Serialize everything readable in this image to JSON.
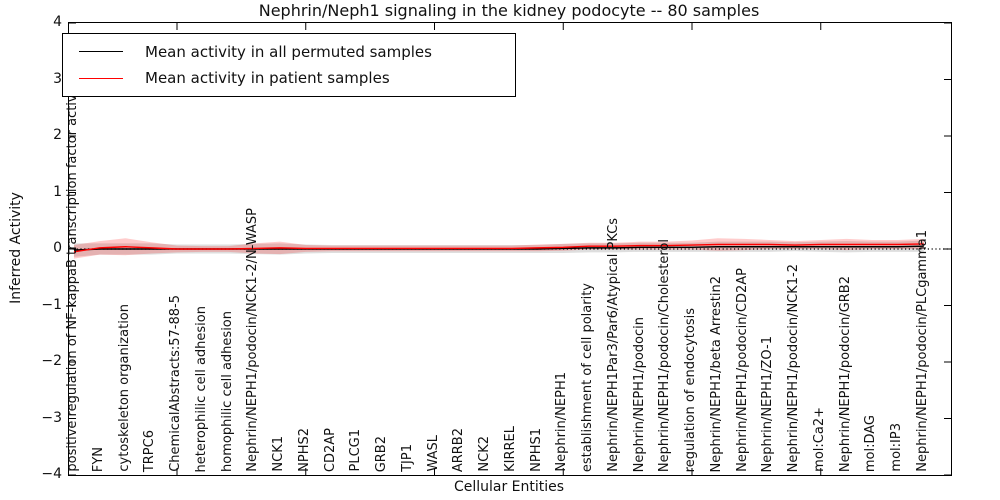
{
  "chart_data": {
    "type": "line",
    "title": "Nephrin/Neph1 signaling in the kidney podocyte -- 80 samples",
    "xlabel": "Cellular Entities",
    "ylabel": "Inferred Activity",
    "ylim": [
      -4,
      4
    ],
    "yticks": [
      4,
      3,
      2,
      1,
      0,
      -1,
      -2,
      -3,
      -4
    ],
    "xtick_positions": [
      4,
      9,
      14,
      19,
      24,
      29
    ],
    "grid": false,
    "legend_position": "upper-left",
    "zero_line": {
      "value": 0,
      "style": "dotted",
      "color": "#000000"
    },
    "categories": [
      "positive regulation of NF-kappaB transcription factor activity",
      "FYN",
      "cytoskeleton organization",
      "TRPC6",
      "ChemicalAbstracts:57-88-5",
      "heterophilic cell adhesion",
      "homophilic cell adhesion",
      "Nephrin/NEPH1/podocin/NCK1-2/N-WASP",
      "NCK1",
      "NPHS2",
      "CD2AP",
      "PLCG1",
      "GRB2",
      "TJP1",
      "WASL",
      "ARRB2",
      "NCK2",
      "KIRREL",
      "NPHS1",
      "Nephrin/NEPH1",
      "establishment of cell polarity",
      "Nephrin/NEPH1Par3/Par6/Atypical PKCs",
      "Nephrin/NEPH1/podocin",
      "Nephrin/NEPH1/podocin/Cholesterol",
      "regulation of endocytosis",
      "Nephrin/NEPH1/beta Arrestin2",
      "Nephrin/NEPH1/podocin/CD2AP",
      "Nephrin/NEPH1/ZO-1",
      "Nephrin/NEPH1/podocin/NCK1-2",
      "mol:Ca2+",
      "Nephrin/NEPH1/podocin/GRB2",
      "mol:DAG",
      "mol:IP3",
      "Nephrin/NEPH1/podocin/PLCgamma1"
    ],
    "series": [
      {
        "name": "Mean activity in all permuted samples",
        "color": "#000000",
        "band_opacity": 0.13,
        "values": [
          -0.02,
          0,
          0,
          0,
          0,
          0,
          0,
          0,
          0,
          0,
          0,
          0,
          0,
          0,
          0,
          0,
          0,
          0,
          0,
          0.01,
          0.02,
          0.02,
          0.03,
          0.03,
          0.03,
          0.04,
          0.04,
          0.04,
          0.04,
          0.04,
          0.04,
          0.04,
          0.04,
          0.05
        ],
        "band": [
          0.12,
          0.1,
          0.1,
          0.1,
          0.08,
          0.08,
          0.08,
          0.09,
          0.1,
          0.08,
          0.07,
          0.07,
          0.07,
          0.07,
          0.07,
          0.07,
          0.07,
          0.07,
          0.07,
          0.08,
          0.08,
          0.08,
          0.08,
          0.08,
          0.08,
          0.09,
          0.09,
          0.09,
          0.08,
          0.09,
          0.1,
          0.09,
          0.09,
          0.1
        ]
      },
      {
        "name": "Mean activity in patient samples",
        "color": "#ff0000",
        "band_opacity": 0.2,
        "values": [
          -0.05,
          0.02,
          0.04,
          0.02,
          0,
          0,
          0,
          0.01,
          0.02,
          0.01,
          0.01,
          0.01,
          0.01,
          0.01,
          0.01,
          0.01,
          0.01,
          0.01,
          0.02,
          0.03,
          0.05,
          0.05,
          0.06,
          0.06,
          0.07,
          0.08,
          0.08,
          0.08,
          0.07,
          0.08,
          0.08,
          0.08,
          0.08,
          0.09
        ],
        "band": [
          0.12,
          0.12,
          0.15,
          0.1,
          0.06,
          0.05,
          0.05,
          0.09,
          0.11,
          0.06,
          0.05,
          0.05,
          0.05,
          0.05,
          0.05,
          0.05,
          0.05,
          0.05,
          0.06,
          0.06,
          0.06,
          0.06,
          0.07,
          0.07,
          0.08,
          0.11,
          0.1,
          0.08,
          0.07,
          0.08,
          0.1,
          0.08,
          0.08,
          0.09
        ]
      }
    ]
  },
  "legend": {
    "items": [
      {
        "label": "Mean activity in all permuted samples",
        "color": "#000000"
      },
      {
        "label": "Mean activity in patient samples",
        "color": "#ff0000"
      }
    ]
  }
}
